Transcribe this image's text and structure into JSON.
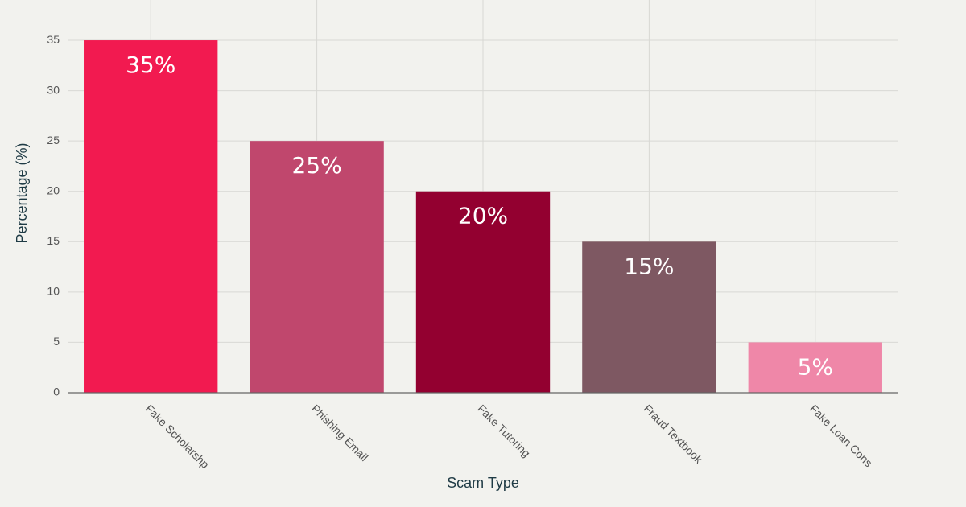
{
  "chart_data": {
    "type": "bar",
    "x_label": "Scam Type",
    "y_label": "Percentage (%)",
    "categories": [
      "Fake Scholarshp",
      "Phishing Email",
      "Fake Tutoring",
      "Fraud Textbook",
      "Fake Loan Cons"
    ],
    "values": [
      35,
      25,
      20,
      15,
      5
    ],
    "value_labels": [
      "35%",
      "25%",
      "20%",
      "15%",
      "5%"
    ],
    "colors": [
      "#f21a50",
      "#c0476d",
      "#930030",
      "#7e5862",
      "#ef87a8"
    ],
    "ylim": [
      0,
      39
    ],
    "yticks": [
      0,
      5,
      10,
      15,
      20,
      25,
      30,
      35
    ],
    "grid": true
  }
}
